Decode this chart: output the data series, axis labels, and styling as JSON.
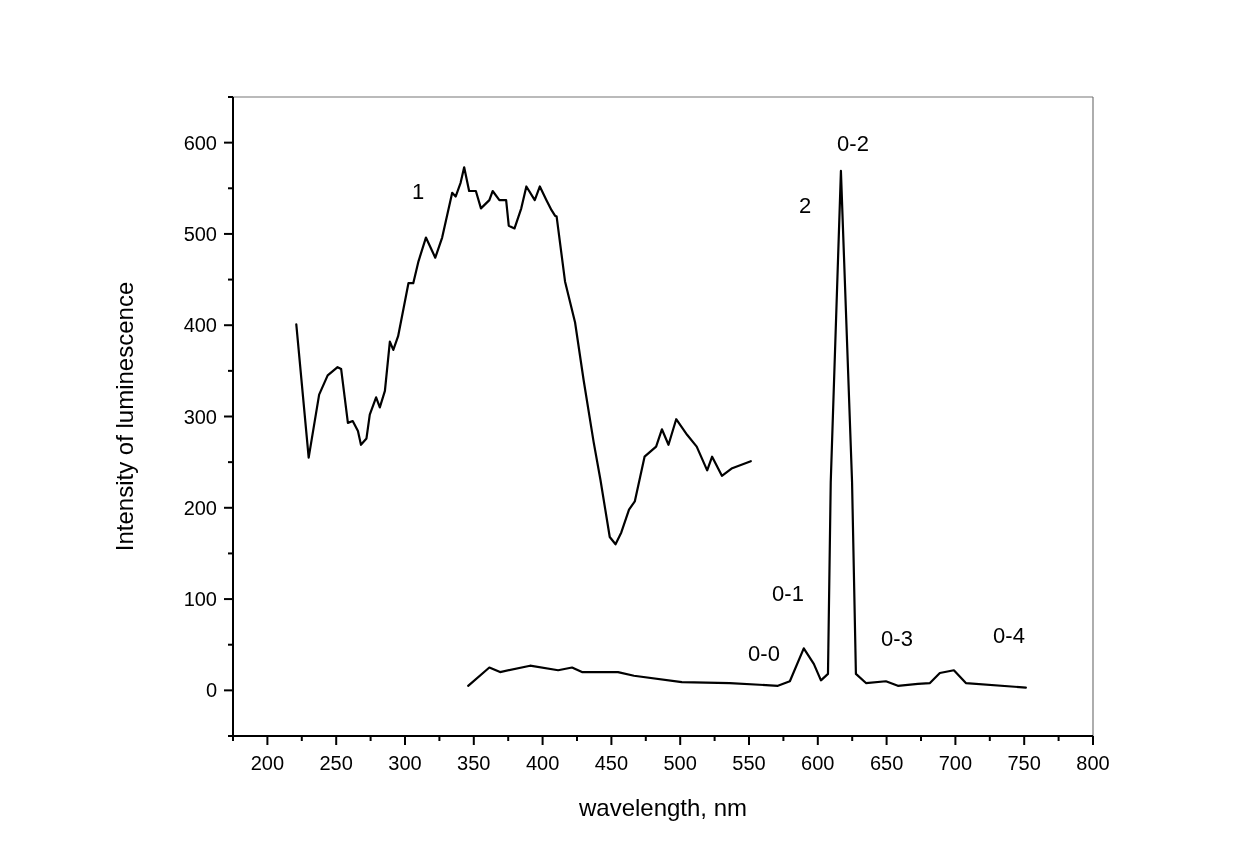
{
  "chart_data": {
    "type": "line",
    "xlabel": "wavelength, nm",
    "ylabel": "Intensity of luminescence",
    "xlim": [
      175,
      800
    ],
    "xticks": [
      {
        "value": 175,
        "label": null
      },
      200,
      {
        "value": 225,
        "label": null
      },
      250,
      {
        "value": 275,
        "label": null
      },
      300,
      {
        "value": 325,
        "label": null
      },
      350,
      {
        "value": 375,
        "label": null
      },
      400,
      {
        "value": 425,
        "label": null
      },
      450,
      {
        "value": 475,
        "label": null
      },
      500,
      {
        "value": 525,
        "label": null
      },
      550,
      {
        "value": 575,
        "label": null
      },
      600,
      {
        "value": 625,
        "label": null
      },
      650,
      {
        "value": 675,
        "label": null
      },
      700,
      {
        "value": 725,
        "label": null
      },
      750,
      {
        "value": 775,
        "label": null
      },
      800
    ],
    "ylim": [
      -50,
      650
    ],
    "yticks": [
      {
        "value": -50,
        "label": null
      },
      0,
      {
        "value": 50,
        "label": null
      },
      100,
      {
        "value": 150,
        "label": null
      },
      200,
      {
        "value": 250,
        "label": null
      },
      300,
      {
        "value": 350,
        "label": null
      },
      400,
      {
        "value": 450,
        "label": null
      },
      500,
      {
        "value": 550,
        "label": null
      },
      600,
      {
        "value": 650,
        "label": null
      }
    ],
    "grid": false,
    "marker": "none",
    "line_style": "solid",
    "series": [
      {
        "color": "#000000",
        "x": [
          221,
          230,
          237.6,
          243.8,
          251,
          253.6,
          258.5,
          262,
          265.8,
          268,
          272,
          274.4,
          279,
          281.7,
          285.4,
          289,
          291.5,
          295,
          298.9,
          302.5,
          306,
          309.8,
          315.2,
          322,
          327,
          334.3,
          336.8,
          340.4,
          343,
          346.6,
          351.5,
          355.2,
          361.3,
          363.7,
          368.6,
          373.5,
          375.4,
          379.6,
          384.5,
          388.2,
          394.3,
          398,
          402.8,
          406.5,
          409,
          410.2,
          416.3,
          423.6,
          429.8,
          437.1,
          442,
          448.8,
          453,
          457.2,
          462.8,
          467,
          474.1,
          482.5,
          486.7,
          491.5,
          497.1,
          505,
          512,
          519.6,
          523.2,
          530.3,
          537.3,
          551.3
        ],
        "values": [
          401,
          255,
          324,
          345,
          354,
          352,
          293,
          295,
          284,
          269,
          276,
          302,
          321,
          310,
          328,
          382,
          373,
          388,
          418,
          446,
          446,
          470,
          496,
          474,
          496,
          545,
          541,
          556,
          573,
          547,
          547,
          528,
          537,
          547,
          537,
          537,
          509,
          506,
          528,
          552,
          537,
          552,
          537,
          526,
          520,
          519,
          448,
          403,
          340,
          272,
          231,
          168,
          160,
          173,
          198,
          207,
          256,
          267,
          286,
          269,
          297,
          280,
          267,
          241,
          256,
          235,
          243,
          251
        ]
      },
      {
        "color": "#000000",
        "x": [
          345.9,
          361.3,
          369.1,
          390.9,
          411.3,
          421.4,
          428.6,
          454.8,
          466.4,
          501.2,
          536,
          571,
          579.7,
          589.8,
          597.1,
          602.3,
          607.4,
          609.4,
          616.8,
          624.9,
          627.7,
          635,
          649.5,
          658.2,
          672.7,
          681.5,
          688.7,
          698.9,
          707.6,
          751.2
        ],
        "values": [
          5,
          25,
          20,
          27,
          22,
          25,
          20,
          20,
          16,
          9,
          8,
          5,
          10,
          46,
          29,
          11,
          18,
          228,
          569,
          228,
          18,
          8,
          10,
          5,
          7,
          8,
          19,
          22,
          8,
          3
        ]
      }
    ],
    "annotations": [
      "1",
      "2",
      "0-2",
      "0-1",
      "0-0",
      "0-3",
      "0-4"
    ]
  }
}
